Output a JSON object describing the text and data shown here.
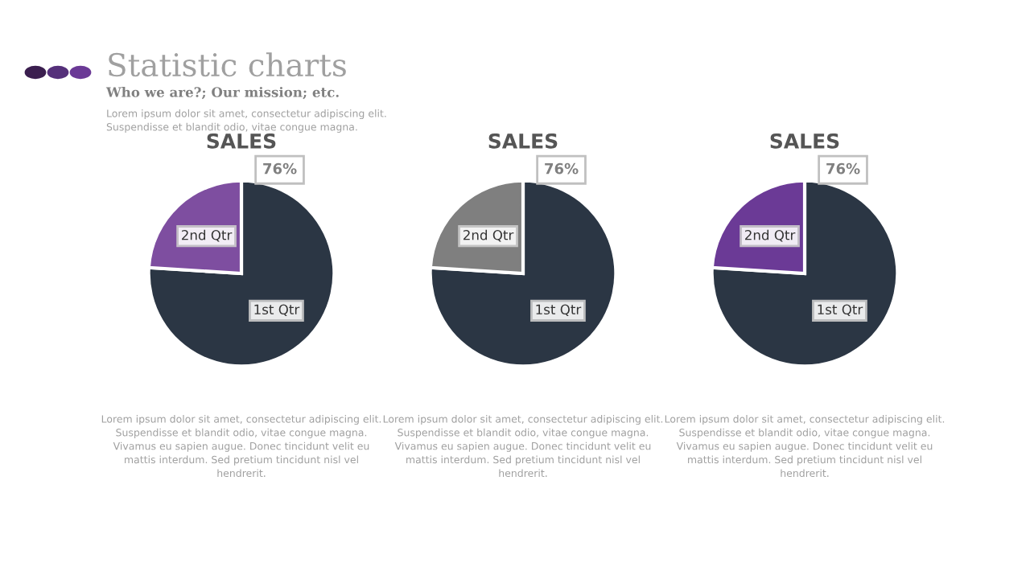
{
  "chart_data": [
    {
      "type": "other",
      "title": "Statistic charts",
      "subtitle": "Who we are?; Our mission; etc.",
      "annotations": [
        "Lorem ipsum dolor sit amet, consectetur adipiscing elit.\nSuspendisse et blandit odio, vitae congue magna."
      ]
    },
    {
      "type": "pie",
      "title": "SALES",
      "categories": [
        "1st Qtr",
        "2nd Qtr"
      ],
      "values": [
        76,
        24
      ],
      "colors": [
        "#2b3644",
        "#7e4ea0"
      ],
      "value_labels": [
        "76%",
        null
      ],
      "annotations": [
        "Lorem ipsum dolor sit amet, consectetur adipiscing elit.\nSuspendisse et blandit odio, vitae congue magna.\nVivamus eu sapien augue. Donec tincidunt velit eu\nmattis interdum. Sed pretium tincidunt nisl vel\nhendrerit."
      ]
    },
    {
      "type": "pie",
      "title": "SALES",
      "categories": [
        "1st Qtr",
        "2nd Qtr"
      ],
      "values": [
        76,
        24
      ],
      "colors": [
        "#2b3644",
        "#7f7f7f"
      ],
      "value_labels": [
        "76%",
        null
      ],
      "annotations": [
        "Lorem ipsum dolor sit amet, consectetur adipiscing elit.\nSuspendisse et blandit odio, vitae congue magna.\nVivamus eu sapien augue. Donec tincidunt velit eu\nmattis interdum. Sed pretium tincidunt nisl vel\nhendrerit."
      ]
    },
    {
      "type": "pie",
      "title": "SALES",
      "categories": [
        "1st Qtr",
        "2nd Qtr"
      ],
      "values": [
        76,
        24
      ],
      "colors": [
        "#2b3644",
        "#6b3a96"
      ],
      "value_labels": [
        "76%",
        null
      ],
      "annotations": [
        "Lorem ipsum dolor sit amet, consectetur adipiscing elit.\nSuspendisse et blandit odio, vitae congue magna.\nVivamus eu sapien augue. Donec tincidunt velit eu\nmattis interdum. Sed pretium tincidunt nisl vel\nhendrerit."
      ]
    }
  ]
}
